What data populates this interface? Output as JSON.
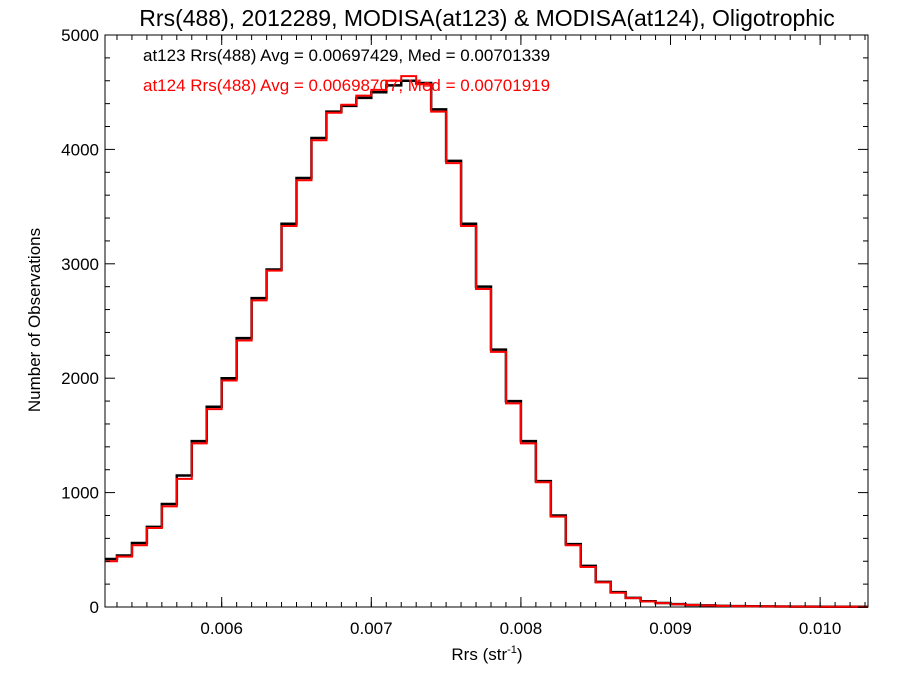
{
  "chart_data": {
    "type": "line",
    "title": "Rrs(488), 2012289, MODISA(at123) & MODISA(at124), Oligotrophic",
    "xlabel": {
      "base": "Rrs (str",
      "sup": "-1",
      "close": ")"
    },
    "ylabel": "Number of Observations",
    "xlim": [
      0.00522,
      0.01032
    ],
    "ylim": [
      0,
      5000
    ],
    "x_ticks": [
      0.006,
      0.007,
      0.008,
      0.009,
      0.01
    ],
    "x_tick_labels": [
      "0.006",
      "0.007",
      "0.008",
      "0.009",
      "0.010"
    ],
    "y_ticks": [
      0,
      1000,
      2000,
      3000,
      4000,
      5000
    ],
    "y_tick_labels": [
      "0",
      "1000",
      "2000",
      "3000",
      "4000",
      "5000"
    ],
    "grid": false,
    "legend_placement": "top-left",
    "series": [
      {
        "name": "at123 Rrs(488) Avg = 0.00697429, Med = 0.00701339",
        "color": "#000000",
        "x": [
          0.00522,
          0.0053,
          0.0054,
          0.0055,
          0.0056,
          0.0057,
          0.0058,
          0.0059,
          0.006,
          0.0061,
          0.0062,
          0.0063,
          0.0064,
          0.0065,
          0.0066,
          0.0067,
          0.0068,
          0.0069,
          0.007,
          0.0071,
          0.0072,
          0.0073,
          0.0074,
          0.0075,
          0.0076,
          0.0077,
          0.0078,
          0.0079,
          0.008,
          0.0081,
          0.0082,
          0.0083,
          0.0084,
          0.0085,
          0.0086,
          0.0087,
          0.0088,
          0.0089,
          0.009,
          0.0091,
          0.0092,
          0.0093,
          0.0094,
          0.0095,
          0.0096,
          0.0097,
          0.0098,
          0.0099,
          0.01,
          0.0101,
          0.0102,
          0.01032
        ],
        "y": [
          420,
          450,
          560,
          700,
          900,
          1150,
          1450,
          1750,
          2000,
          2350,
          2700,
          2950,
          3350,
          3750,
          4100,
          4330,
          4380,
          4450,
          4500,
          4560,
          4600,
          4580,
          4350,
          3900,
          3350,
          2800,
          2250,
          1800,
          1450,
          1100,
          800,
          550,
          360,
          220,
          130,
          80,
          50,
          35,
          25,
          18,
          14,
          10,
          8,
          6,
          5,
          4,
          3,
          3,
          2,
          2,
          2,
          2
        ]
      },
      {
        "name": "at124 Rrs(488) Avg = 0.00698707, Med = 0.00701919",
        "color": "#ff0000",
        "x": [
          0.00522,
          0.0053,
          0.0054,
          0.0055,
          0.0056,
          0.0057,
          0.0058,
          0.0059,
          0.006,
          0.0061,
          0.0062,
          0.0063,
          0.0064,
          0.0065,
          0.0066,
          0.0067,
          0.0068,
          0.0069,
          0.007,
          0.0071,
          0.0072,
          0.0073,
          0.0074,
          0.0075,
          0.0076,
          0.0077,
          0.0078,
          0.0079,
          0.008,
          0.0081,
          0.0082,
          0.0083,
          0.0084,
          0.0085,
          0.0086,
          0.0087,
          0.0088,
          0.0089,
          0.009,
          0.0091,
          0.0092,
          0.0093,
          0.0094,
          0.0095,
          0.0096,
          0.0097,
          0.0098,
          0.0099,
          0.01,
          0.0101,
          0.0102,
          0.01032
        ],
        "y": [
          400,
          440,
          540,
          690,
          880,
          1120,
          1430,
          1730,
          1980,
          2330,
          2680,
          2940,
          3330,
          3730,
          4080,
          4320,
          4390,
          4470,
          4520,
          4600,
          4640,
          4570,
          4330,
          3880,
          3330,
          2780,
          2230,
          1780,
          1430,
          1090,
          790,
          540,
          350,
          215,
          125,
          78,
          48,
          34,
          24,
          17,
          13,
          10,
          8,
          6,
          5,
          4,
          3,
          3,
          2,
          2,
          2,
          2
        ]
      }
    ]
  }
}
